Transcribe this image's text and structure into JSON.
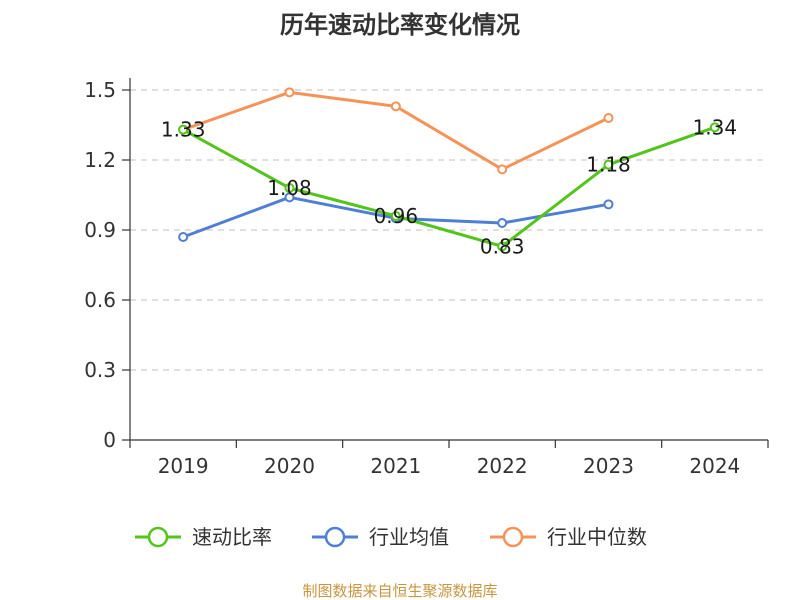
{
  "chart_data": {
    "type": "line",
    "title": "历年速动比率变化情况",
    "categories": [
      "2019",
      "2020",
      "2021",
      "2022",
      "2023",
      "2024"
    ],
    "ylim": [
      0,
      1.5
    ],
    "yticks": [
      "0",
      "0.3",
      "0.6",
      "0.9",
      "1.2",
      "1.5"
    ],
    "ytick_values": [
      0,
      0.3,
      0.6,
      0.9,
      1.2,
      1.5
    ],
    "grid": true,
    "legend_position": "bottom",
    "series": [
      {
        "name": "速动比率",
        "color": "#52c41a",
        "values": [
          1.33,
          1.08,
          0.96,
          0.83,
          1.18,
          1.34
        ],
        "labels": [
          "1.33",
          "1.08",
          "0.96",
          "0.83",
          "1.18",
          "1.34"
        ]
      },
      {
        "name": "行业均值",
        "color": "#4e7fd6",
        "values": [
          0.87,
          1.04,
          0.95,
          0.93,
          1.01,
          null
        ]
      },
      {
        "name": "行业中位数",
        "color": "#f79256",
        "values": [
          1.33,
          1.49,
          1.43,
          1.16,
          1.38,
          null
        ]
      }
    ]
  },
  "footer": "制图数据来自恒生聚源数据库"
}
